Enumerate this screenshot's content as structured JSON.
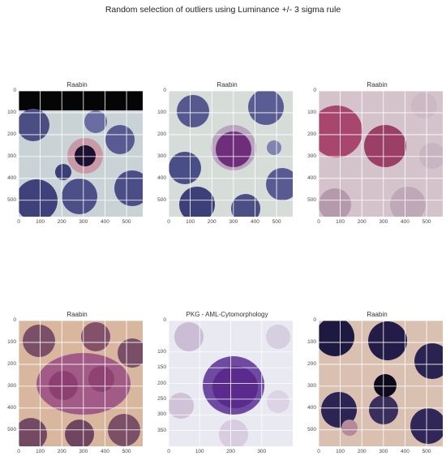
{
  "figure": {
    "title": "Random selection of outliers using Luminance +/- 3 sigma rule"
  },
  "panels": [
    {
      "title": "Raabin",
      "x_ticks": [
        "0",
        "100",
        "200",
        "300",
        "400",
        "500"
      ],
      "y_ticks": [
        "0",
        "100",
        "200",
        "300",
        "400",
        "500"
      ],
      "extent": 575,
      "style": "black-band"
    },
    {
      "title": "Raabin",
      "x_ticks": [
        "0",
        "100",
        "200",
        "300",
        "400",
        "500"
      ],
      "y_ticks": [
        "0",
        "100",
        "200",
        "300",
        "400",
        "500"
      ],
      "extent": 575,
      "style": "pale"
    },
    {
      "title": "Raabin",
      "x_ticks": [
        "0",
        "100",
        "200",
        "300",
        "400",
        "500"
      ],
      "y_ticks": [
        "0",
        "100",
        "200",
        "300",
        "400",
        "500"
      ],
      "extent": 575,
      "style": "pink"
    },
    {
      "title": "Raabin",
      "x_ticks": [
        "0",
        "100",
        "200",
        "300",
        "400",
        "500"
      ],
      "y_ticks": [
        "0",
        "100",
        "200",
        "300",
        "400",
        "500"
      ],
      "extent": 575,
      "style": "mauve"
    },
    {
      "title": "PKG - AML-Cytomorphology",
      "x_ticks": [
        "0",
        "100",
        "200",
        "300"
      ],
      "y_ticks": [
        "0",
        "100",
        "150",
        "200",
        "250",
        "300",
        "350"
      ],
      "extent": 400,
      "style": "aml"
    },
    {
      "title": "Raabin",
      "x_ticks": [
        "0",
        "100",
        "200",
        "300",
        "400",
        "500"
      ],
      "y_ticks": [
        "0",
        "100",
        "200",
        "300",
        "400",
        "500"
      ],
      "extent": 575,
      "style": "dark"
    }
  ]
}
